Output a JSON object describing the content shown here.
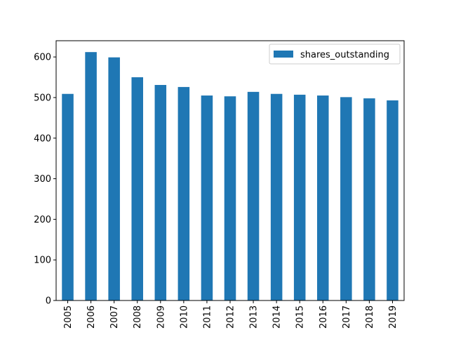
{
  "chart_data": {
    "type": "bar",
    "categories": [
      "2005",
      "2006",
      "2007",
      "2008",
      "2009",
      "2010",
      "2011",
      "2012",
      "2013",
      "2014",
      "2015",
      "2016",
      "2017",
      "2018",
      "2019"
    ],
    "series": [
      {
        "name": "shares_outstanding",
        "values": [
          509,
          612,
          599,
          550,
          531,
          526,
          505,
          503,
          514,
          509,
          507,
          505,
          501,
          498,
          493
        ]
      }
    ],
    "ylim": [
      0,
      640
    ],
    "yticks": [
      0,
      100,
      200,
      300,
      400,
      500,
      600
    ],
    "grid": false,
    "legend_position": "top-right",
    "colors": {
      "bar": "#1f77b4"
    }
  }
}
